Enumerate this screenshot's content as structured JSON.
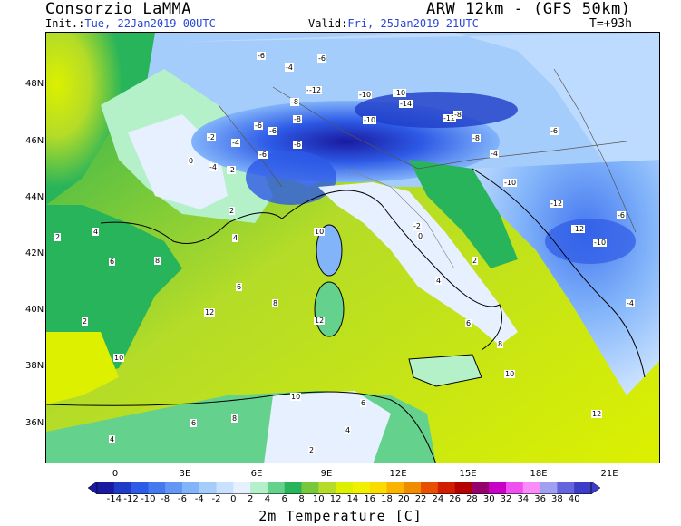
{
  "header": {
    "producer": "Consorzio LaMMA",
    "model": "ARW 12km - (GFS 50km)",
    "init_label": "Init.:",
    "init_value": "Tue, 22Jan2019 00UTC",
    "valid_label": "Valid:",
    "valid_value": "Fri, 25Jan2019 21UTC",
    "forecast_hour": "T=+93h"
  },
  "map": {
    "lat_labels": [
      "48N",
      "46N",
      "44N",
      "42N",
      "40N",
      "38N",
      "36N"
    ],
    "lon_labels": [
      "0",
      "3E",
      "6E",
      "9E",
      "12E",
      "15E",
      "18E",
      "21E"
    ],
    "contour_labels": [
      "-6",
      "-4",
      "-6",
      "-8",
      "-12",
      "-10",
      "-14",
      "-12",
      "-8",
      "-10",
      "-6",
      "-4",
      "-2",
      "-6",
      "-6",
      "-10",
      "-12",
      "-8",
      "-6",
      "-4",
      "-2",
      "0",
      "2",
      "4",
      "6",
      "8",
      "10",
      "12",
      "-8",
      "-10",
      "-12",
      "-6",
      "-4",
      "-2",
      "0",
      "2",
      "4",
      "6",
      "8",
      "10",
      "2",
      "4",
      "6",
      "8",
      "10",
      "12",
      "-10",
      "-12",
      "-6",
      "-4",
      "2",
      "4",
      "6",
      "8",
      "10",
      "12",
      "2",
      "4",
      "6"
    ]
  },
  "colorbar": {
    "title": "2m Temperature [C]",
    "ticks": [
      "-14",
      "-12",
      "-10",
      "-8",
      "-6",
      "-4",
      "-2",
      "0",
      "2",
      "4",
      "6",
      "8",
      "10",
      "12",
      "14",
      "16",
      "18",
      "20",
      "22",
      "24",
      "26",
      "28",
      "30",
      "32",
      "34",
      "36",
      "38",
      "40"
    ],
    "colors": [
      "#1a1aa0",
      "#1e3cc8",
      "#2d5ae6",
      "#4678f0",
      "#6496f5",
      "#82b4fa",
      "#a5cdfc",
      "#c8e1ff",
      "#e6f0ff",
      "#b4f0c8",
      "#64d28c",
      "#28b45a",
      "#78c83c",
      "#b4dc28",
      "#dcf000",
      "#f0f000",
      "#fadc00",
      "#fab400",
      "#f08c00",
      "#e65000",
      "#d21e00",
      "#b40000",
      "#96006e",
      "#c800c8",
      "#f050f0",
      "#fa8cfa",
      "#a0a0f0",
      "#6464dc",
      "#3c3cc8"
    ]
  }
}
